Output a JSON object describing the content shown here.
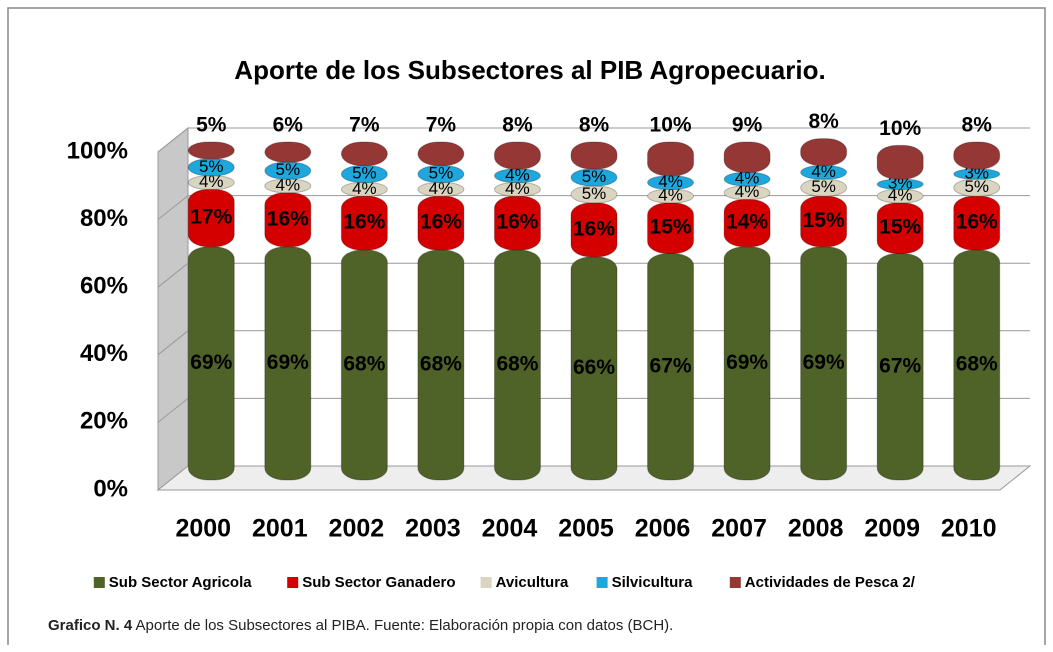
{
  "chart_data": {
    "type": "stacked_bar",
    "title": "Aporte de los Subsectores al PIB Agropecuario.",
    "categories": [
      "2000",
      "2001",
      "2002",
      "2003",
      "2004",
      "2005",
      "2006",
      "2007",
      "2008",
      "2009",
      "2010"
    ],
    "series": [
      {
        "name": "Sub Sector Agricola",
        "color": "#4f6228",
        "values": [
          69,
          69,
          68,
          68,
          68,
          66,
          67,
          69,
          69,
          67,
          68
        ],
        "value_labels": [
          "69%",
          "69%",
          "68%",
          "68%",
          "68%",
          "66%",
          "67%",
          "69%",
          "69%",
          "67%",
          "68%"
        ]
      },
      {
        "name": "Sub Sector Ganadero",
        "color": "#d40000",
        "values": [
          17,
          16,
          16,
          16,
          16,
          16,
          15,
          14,
          15,
          15,
          16
        ],
        "value_labels": [
          "17%",
          "16%",
          "16%",
          "16%",
          "16%",
          "16%",
          "15%",
          "14%",
          "15%",
          "15%",
          "16%"
        ]
      },
      {
        "name": "Avicultura",
        "color": "#d9d5c1",
        "values": [
          4,
          4,
          4,
          4,
          4,
          5,
          4,
          4,
          5,
          4,
          5
        ],
        "value_labels": [
          "4%",
          "4%",
          "4%",
          "4%",
          "4%",
          "5%",
          "4%",
          "4%",
          "5%",
          "4%",
          "5%"
        ]
      },
      {
        "name": "Silvicultura",
        "color": "#1ea7dc",
        "values": [
          5,
          5,
          5,
          5,
          4,
          5,
          4,
          4,
          4,
          3,
          3
        ],
        "value_labels": [
          "5%",
          "5%",
          "5%",
          "5%",
          "4%",
          "5%",
          "4%",
          "4%",
          "4%",
          "3%",
          "3%"
        ]
      },
      {
        "name": "Actividades de Pesca  2/",
        "color": "#953735",
        "values": [
          5,
          6,
          7,
          7,
          8,
          8,
          10,
          9,
          8,
          10,
          8
        ],
        "value_labels": [
          "5%",
          "6%",
          "7%",
          "7%",
          "8%",
          "8%",
          "10%",
          "9%",
          "8%",
          "10%",
          "8%"
        ]
      }
    ],
    "ylim": [
      0,
      100
    ],
    "yticks": [
      {
        "value": 0,
        "label": "0%"
      },
      {
        "value": 20,
        "label": "20%"
      },
      {
        "value": 40,
        "label": "40%"
      },
      {
        "value": 60,
        "label": "60%"
      },
      {
        "value": 80,
        "label": "80%"
      },
      {
        "value": 100,
        "label": "100%"
      }
    ],
    "grid": true,
    "legend": "bottom"
  },
  "caption": {
    "label": "Grafico  N. 4",
    "text": " Aporte de los Subsectores  al PIBA. Fuente: Elaboración propia con datos (BCH)."
  }
}
